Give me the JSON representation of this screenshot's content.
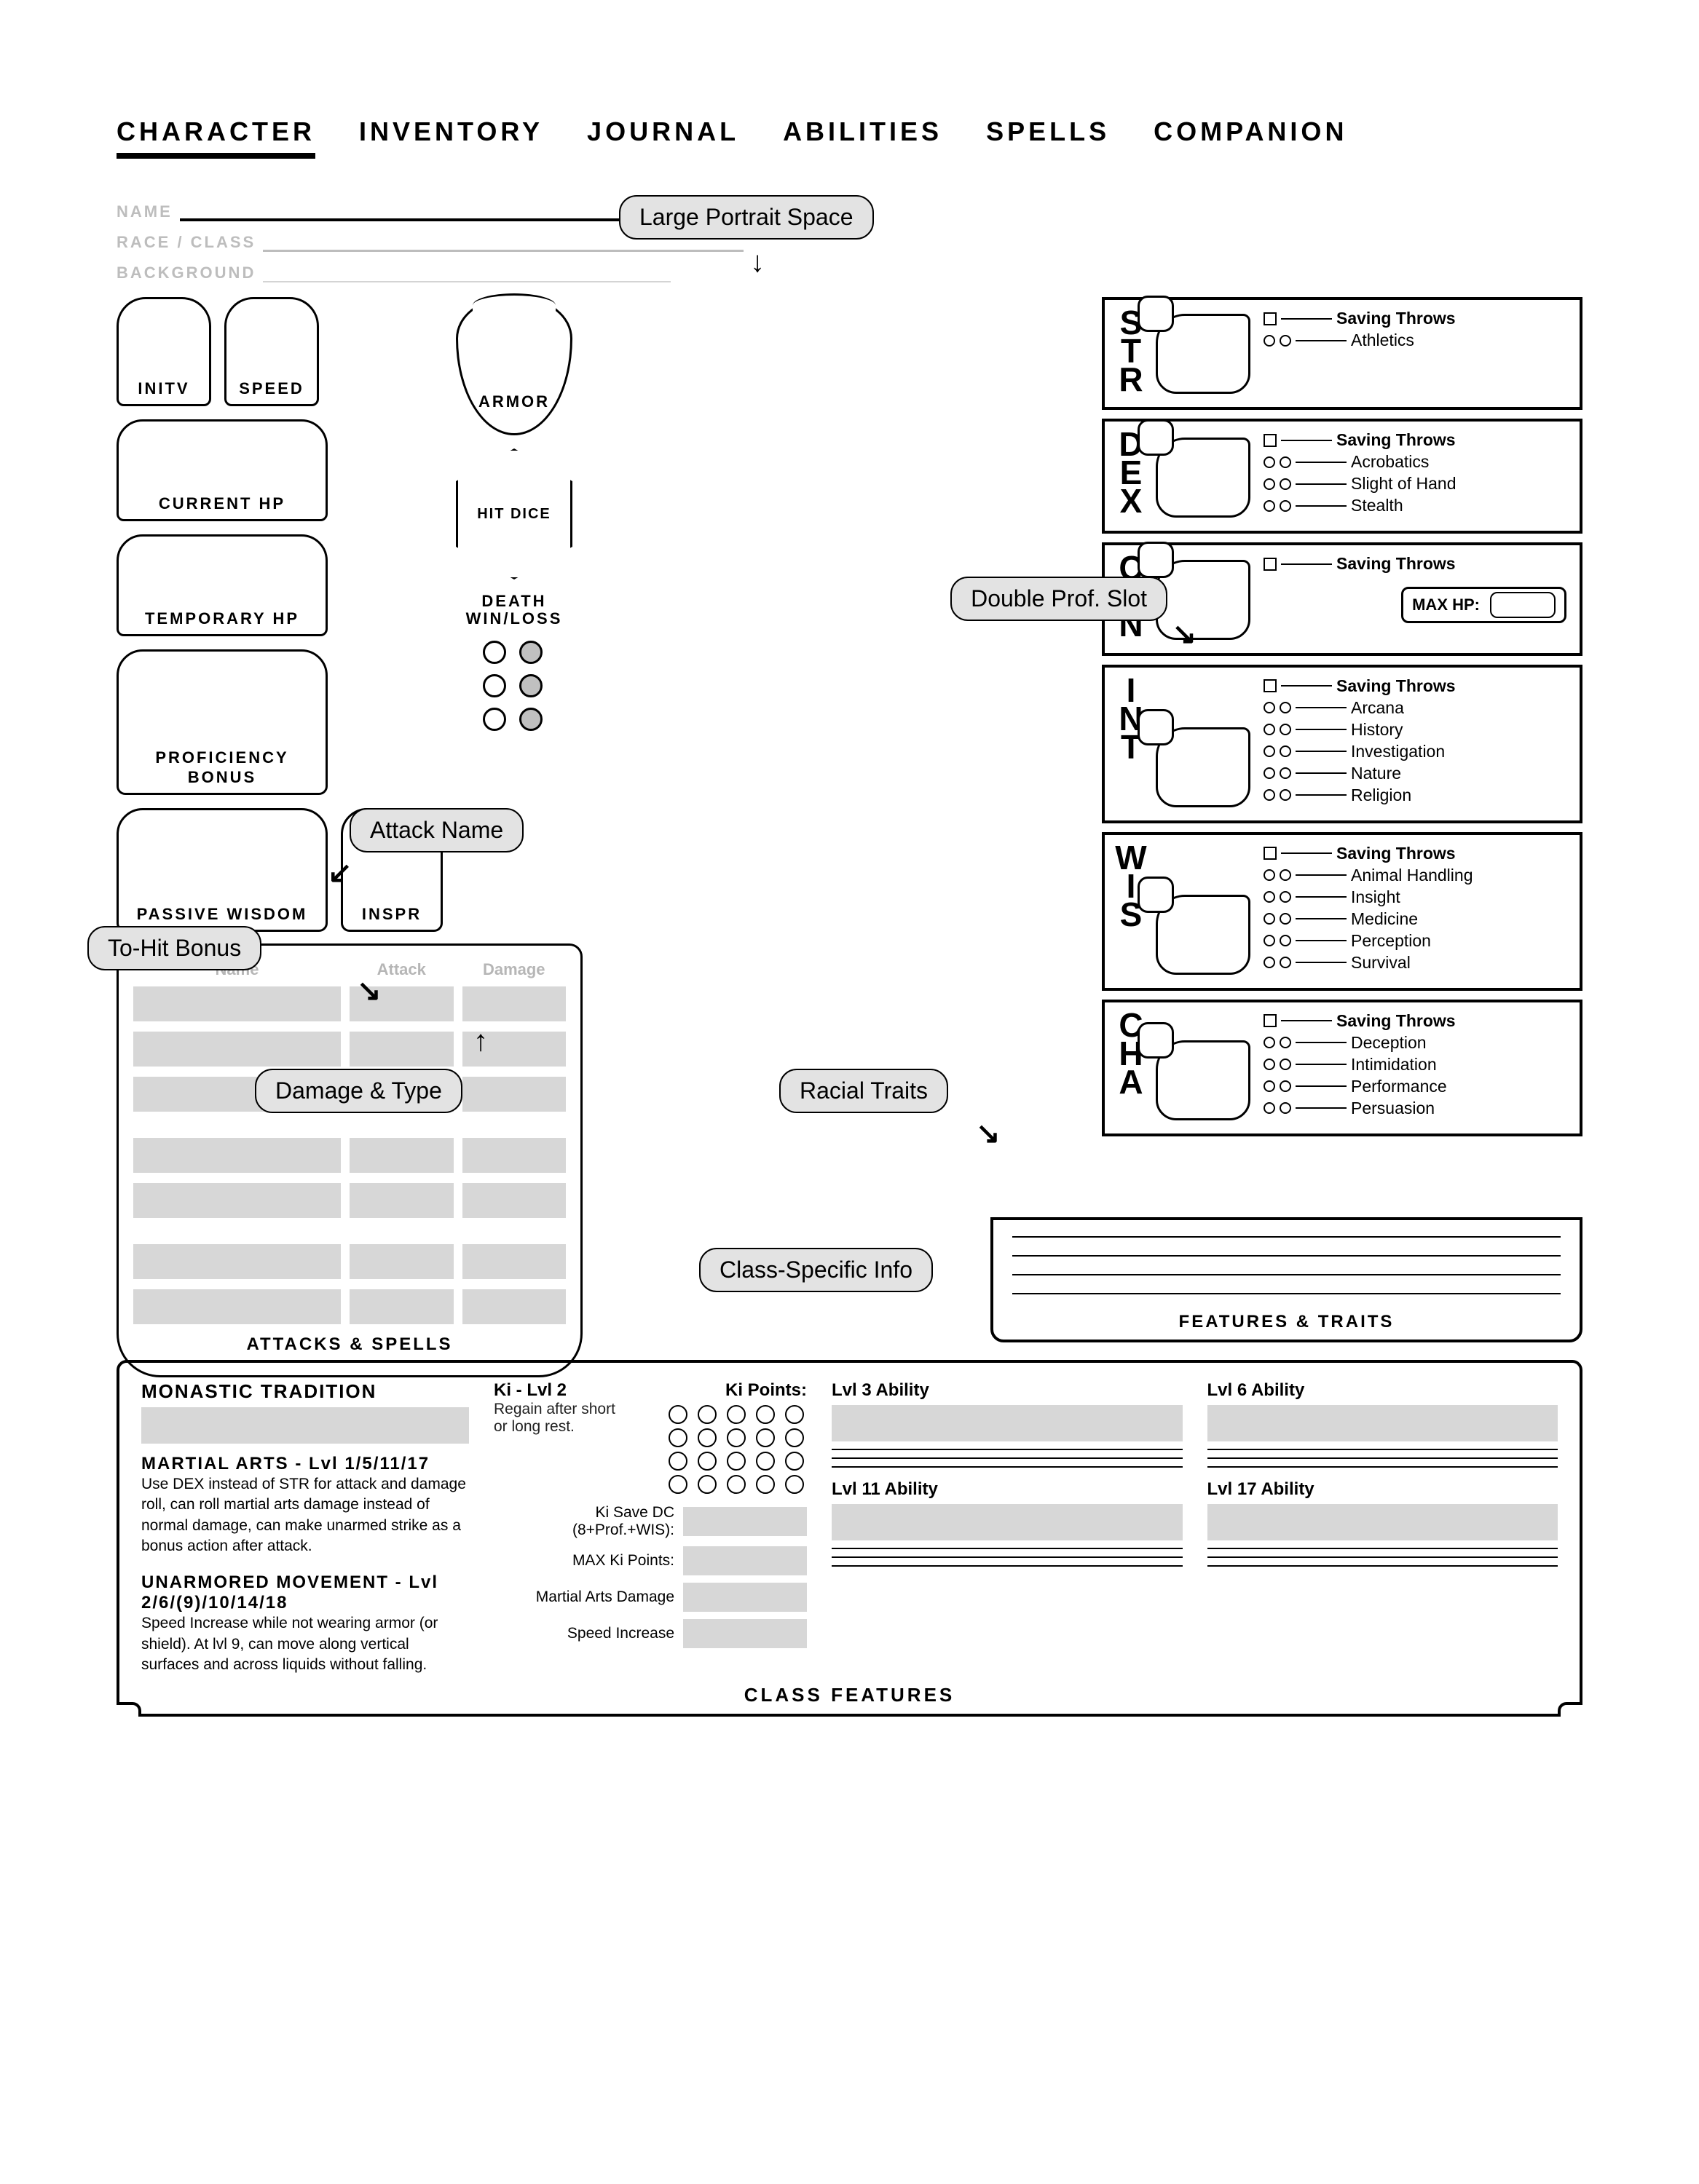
{
  "tabs": [
    "CHARACTER",
    "INVENTORY",
    "JOURNAL",
    "ABILITIES",
    "SPELLS",
    "COMPANION"
  ],
  "activeTab": 0,
  "identity": {
    "name_label": "NAME",
    "race_label": "RACE / CLASS",
    "background_label": "BACKGROUND"
  },
  "stats": {
    "initv": "INITV",
    "speed": "SPEED",
    "armor": "ARMOR",
    "current_hp": "CURRENT HP",
    "temp_hp": "TEMPORARY HP",
    "hit_dice": "HIT DICE",
    "death_label": "DEATH\nWIN/LOSS",
    "prof_bonus": "PROFICIENCY BONUS",
    "passive_wisdom": "PASSIVE WISDOM",
    "inspr": "INSPR"
  },
  "attacks": {
    "cols": [
      "Name",
      "Attack",
      "Damage"
    ],
    "title": "ATTACKS & SPELLS"
  },
  "callouts": {
    "portrait": "Large Portrait Space",
    "attack_name": "Attack Name",
    "to_hit": "To-Hit Bonus",
    "dmg": "Damage & Type",
    "prof": "Double Prof. Slot",
    "racial": "Racial Traits",
    "class": "Class-Specific Info"
  },
  "abilities": [
    {
      "code": "STR",
      "skills": [
        "Athletics"
      ]
    },
    {
      "code": "DEX",
      "skills": [
        "Acrobatics",
        "Slight of Hand",
        "Stealth"
      ]
    },
    {
      "code": "CON",
      "skills": [],
      "maxhp": "MAX HP:"
    },
    {
      "code": "INT",
      "skills": [
        "Arcana",
        "History",
        "Investigation",
        "Nature",
        "Religion"
      ]
    },
    {
      "code": "WIS",
      "skills": [
        "Animal Handling",
        "Insight",
        "Medicine",
        "Perception",
        "Survival"
      ]
    },
    {
      "code": "CHA",
      "skills": [
        "Deception",
        "Intimidation",
        "Performance",
        "Persuasion"
      ]
    }
  ],
  "saving_throws": "Saving Throws",
  "features_title": "FEATURES & TRAITS",
  "class_features": {
    "title": "CLASS FEATURES",
    "monastic": "MONASTIC TRADITION",
    "martial_h": "MARTIAL ARTS - Lvl 1/5/11/17",
    "martial_t": "Use DEX instead of STR for attack and damage roll, can roll martial arts damage instead of normal damage, can make unarmed strike as a bonus action after attack.",
    "unarm_h": "UNARMORED MOVEMENT - Lvl 2/6/(9)/10/14/18",
    "unarm_t": "Speed Increase while not wearing armor (or shield). At lvl 9, can move along vertical surfaces and across liquids without falling.",
    "ki_h": "Ki - Lvl 2",
    "ki_points": "Ki Points:",
    "ki_sub": "Regain after short or long rest.",
    "ki_save": "Ki Save DC (8+Prof.+WIS):",
    "max_ki": "MAX Ki Points:",
    "ma_dmg": "Martial Arts Damage",
    "spd_inc": "Speed Increase",
    "lvls": [
      "Lvl 3 Ability",
      "Lvl 6 Ability",
      "Lvl 11 Ability",
      "Lvl 17 Ability"
    ]
  }
}
